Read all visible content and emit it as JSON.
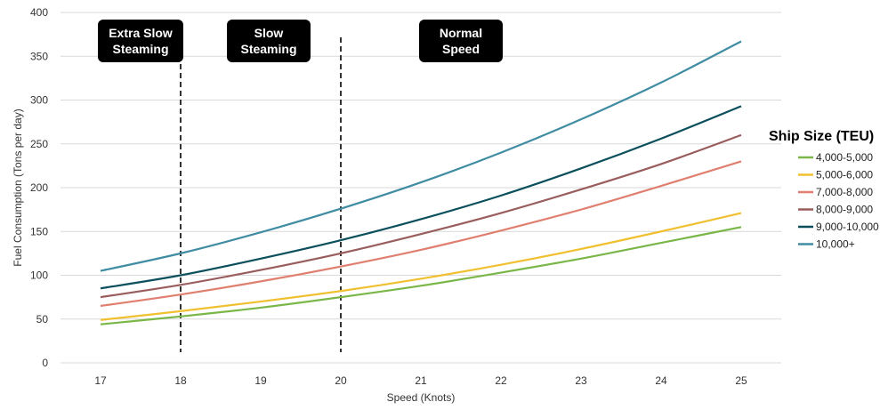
{
  "chart_data": {
    "type": "line",
    "xlabel": "Speed (Knots)",
    "ylabel": "Fuel Consumption (Tons per day)",
    "xlim": [
      17,
      25
    ],
    "ylim": [
      0,
      400
    ],
    "x": [
      17,
      18,
      19,
      20,
      21,
      22,
      23,
      24,
      25
    ],
    "x_ticks": [
      "17",
      "18",
      "19",
      "20",
      "21",
      "22",
      "23",
      "24",
      "25"
    ],
    "y_ticks": [
      "0",
      "50",
      "100",
      "150",
      "200",
      "250",
      "300",
      "350",
      "400"
    ],
    "grid": "horizontal",
    "legend": {
      "title": "Ship Size (TEU)",
      "position": "right"
    },
    "regions": [
      {
        "label": "Extra Slow Steaming",
        "lines": [
          "Extra Slow",
          "Steaming"
        ],
        "x_center": 17.5
      },
      {
        "label": "Slow Steaming",
        "lines": [
          "Slow",
          "Steaming"
        ],
        "x_center": 19.1
      },
      {
        "label": "Normal Speed",
        "lines": [
          "Normal",
          "Speed"
        ],
        "x_center": 21.5
      }
    ],
    "dividers": [
      18,
      20
    ],
    "series": [
      {
        "name": "4,000-5,000",
        "color": "#7ab648",
        "values": [
          44,
          53,
          63,
          75,
          88,
          103,
          119,
          137,
          155
        ]
      },
      {
        "name": "5,000-6,000",
        "color": "#f0c030",
        "values": [
          49,
          59,
          70,
          82,
          96,
          112,
          130,
          150,
          171
        ]
      },
      {
        "name": "7,000-8,000",
        "color": "#e07f6f",
        "values": [
          65,
          78,
          93,
          110,
          129,
          151,
          175,
          202,
          230
        ]
      },
      {
        "name": "8,000-9,000",
        "color": "#9a5d5d",
        "values": [
          75,
          89,
          106,
          125,
          147,
          171,
          198,
          227,
          260
        ]
      },
      {
        "name": "9,000-10,000",
        "color": "#0b4f5c",
        "values": [
          85,
          100,
          119,
          140,
          164,
          191,
          222,
          256,
          293
        ]
      },
      {
        "name": "10,000+",
        "color": "#3f8ca3",
        "values": [
          105,
          125,
          149,
          176,
          206,
          240,
          278,
          320,
          367
        ]
      }
    ]
  }
}
